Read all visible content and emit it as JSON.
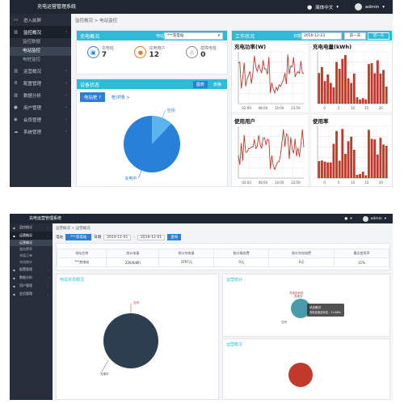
{
  "shot1": {
    "app_title": "充电运营管理系统",
    "lang_label": "简体中文",
    "user_label": "admin",
    "menu": [
      {
        "label": "进入前屏",
        "icon": "monitor-icon",
        "chev": false,
        "active": false
      },
      {
        "label": "监控概况",
        "icon": "chart-icon",
        "chev": true,
        "active": true
      },
      {
        "label": "运营概况",
        "icon": "chart-icon",
        "chev": true,
        "active": false
      },
      {
        "label": "配置管理",
        "icon": "gear-icon",
        "chev": true,
        "active": false
      },
      {
        "label": "数据分析",
        "icon": "chart-icon",
        "chev": true,
        "active": false
      },
      {
        "label": "用户管理",
        "icon": "user-icon",
        "chev": true,
        "active": false
      },
      {
        "label": "会员管理",
        "icon": "users-icon",
        "chev": true,
        "active": false
      },
      {
        "label": "系统管理",
        "icon": "cloud-icon",
        "chev": true,
        "active": false
      }
    ],
    "submenu": [
      {
        "label": "监控数据",
        "active": false
      },
      {
        "label": "电站监控",
        "active": true
      },
      {
        "label": "电桩监控",
        "active": false
      }
    ],
    "breadcrumb": "监控概况 > 电站监控",
    "overview": {
      "title": "充电概况",
      "station_label": "电站",
      "station_value": "***充电站",
      "stats": [
        {
          "label": "充电桩",
          "value": "7",
          "icon": "plug-icon"
        },
        {
          "label": "充电用户",
          "value": "12",
          "icon": "user-icon"
        },
        {
          "label": "故障电桩",
          "value": "0",
          "icon": "warning-icon"
        }
      ]
    },
    "device": {
      "title": "设备状态",
      "tabs": [
        "图表",
        "表格"
      ],
      "station_btn": "电站桩 ?",
      "link_text": "桩详情 >",
      "pie": {
        "type": "pie",
        "categories": [
          "空闲",
          "充电中"
        ],
        "values": [
          12,
          88
        ]
      }
    },
    "work": {
      "title": "工作状况",
      "date_label": "日期",
      "date_value": "2019-12-23",
      "prev_label": "前一天",
      "next_label": "后一天"
    },
    "charts": [
      {
        "type": "line",
        "title": "充电功率(W)",
        "xticks": [
          "02:00",
          "08:00",
          "14:00",
          "23:59"
        ]
      },
      {
        "type": "bar",
        "title": "充电电量(kWh)",
        "xticks": [
          "0",
          "5",
          "10",
          "15",
          "20"
        ]
      },
      {
        "type": "line",
        "title": "使用用户",
        "xticks": [
          "02:00",
          "08:00",
          "14:00",
          "23:59"
        ]
      },
      {
        "type": "bar",
        "title": "使用率",
        "xticks": [
          "0",
          "5",
          "10",
          "15",
          "20"
        ]
      }
    ],
    "colors": {
      "accent": "#2ebbd6",
      "primary_btn": "#2b7fd8",
      "line": "#c0392b",
      "bar": "#c0392b",
      "pie_main": "#2980d9",
      "pie_light": "#5cb4ef",
      "sidebar": "#262e3a",
      "topbar": "#1f2733"
    }
  },
  "shot2": {
    "app_title": "充电运营管理系统",
    "user_label": "admin",
    "menu": [
      {
        "label": "监控概况",
        "active": false
      },
      {
        "label": "运营概况",
        "active": true
      },
      {
        "label": "配置管理",
        "active": false
      },
      {
        "label": "数据分析",
        "active": false
      },
      {
        "label": "用户管理",
        "active": false
      },
      {
        "label": "会员管理",
        "active": false
      }
    ],
    "submenu": [
      "运营概况",
      "服务费率",
      "充值订单",
      "充电统计"
    ],
    "breadcrumb": "运营概况 > 运营概况",
    "filters": {
      "station_label": "电站",
      "station_value": "***充电站",
      "date_label": "日期",
      "date_from": "2019-11-01",
      "date_to": "2019-12-01",
      "query_label": "查询"
    },
    "table": {
      "headers": [
        "电站名称",
        "统计电量",
        "统计充电量",
        "统计服务费",
        "统计充电电费",
        "最近使用率"
      ],
      "row": [
        "***充电站",
        "2264kWh",
        "3797元",
        "0元",
        "0元",
        "11%"
      ]
    },
    "section_titles": [
      "电站状态概况",
      "运营统计",
      "运营概况"
    ],
    "pie_main_labels": [
      "充电中",
      "空闲"
    ],
    "pie_small_labels": [
      "充电站状态",
      "充电中",
      "空闲"
    ],
    "tooltip": {
      "title": "状态概况",
      "body": "充电站电站状态 : 11.86%"
    },
    "colors": {
      "pie_dark": "#2c3e50",
      "pie_teal": "#4a9baa",
      "pie_red": "#c0392b"
    }
  }
}
